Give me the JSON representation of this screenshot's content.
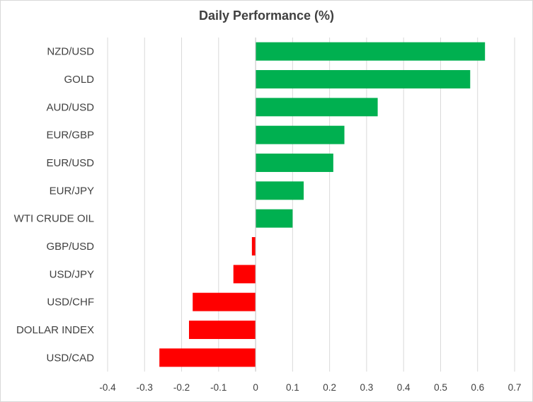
{
  "chart_data": {
    "type": "bar",
    "orientation": "horizontal",
    "title": "Daily Performance (%)",
    "xlabel": "",
    "ylabel": "",
    "categories": [
      "NZD/USD",
      "GOLD",
      "AUD/USD",
      "EUR/GBP",
      "EUR/USD",
      "EUR/JPY",
      "WTI CRUDE OIL",
      "GBP/USD",
      "USD/JPY",
      "USD/CHF",
      "DOLLAR INDEX",
      "USD/CAD"
    ],
    "values": [
      0.62,
      0.58,
      0.33,
      0.24,
      0.21,
      0.13,
      0.1,
      -0.01,
      -0.06,
      -0.17,
      -0.18,
      -0.26
    ],
    "xlim": [
      -0.4,
      0.7
    ],
    "xticks": [
      "-0.4",
      "-0.3",
      "-0.2",
      "-0.1",
      "0",
      "0.1",
      "0.2",
      "0.3",
      "0.4",
      "0.5",
      "0.6",
      "0.7"
    ],
    "grid": "vertical",
    "legend": "none",
    "colors": {
      "positive": "#00b050",
      "negative": "#ff0000",
      "grid": "#d9d9d9",
      "axis": "#bfbfbf",
      "text": "#404040"
    }
  }
}
